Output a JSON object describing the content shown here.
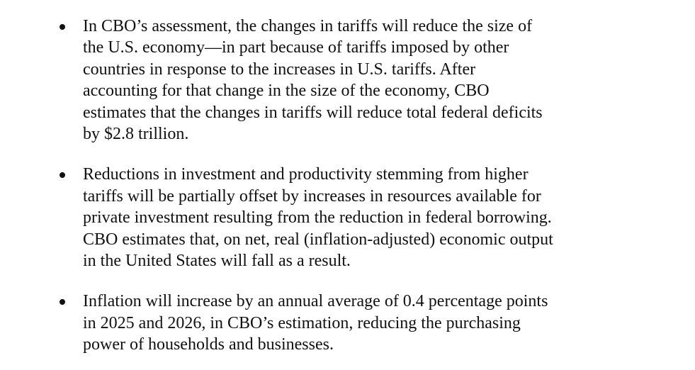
{
  "bullets": [
    {
      "lines": [
        "In CBO’s assessment, the changes in tariffs will reduce the size of",
        "the U.S. economy—in part because of tariffs imposed by other",
        "countries in response to the increases in U.S. tariffs. After",
        "accounting for that change in the size of the economy, CBO",
        "estimates that the changes in tariffs will reduce total federal deficits",
        "by $2.8 trillion."
      ]
    },
    {
      "lines": [
        "Reductions in investment and productivity stemming from higher",
        "tariffs will be partially offset by increases in resources available for",
        "private investment resulting from the reduction in federal borrowing.",
        "CBO estimates that, on net, real (inflation-adjusted) economic output",
        "in the United States will fall as a result."
      ]
    },
    {
      "lines": [
        "Inflation will increase by an annual average of 0.4 percentage points",
        "in 2025 and 2026, in CBO’s estimation, reducing the purchasing",
        "power of households and businesses."
      ]
    }
  ]
}
